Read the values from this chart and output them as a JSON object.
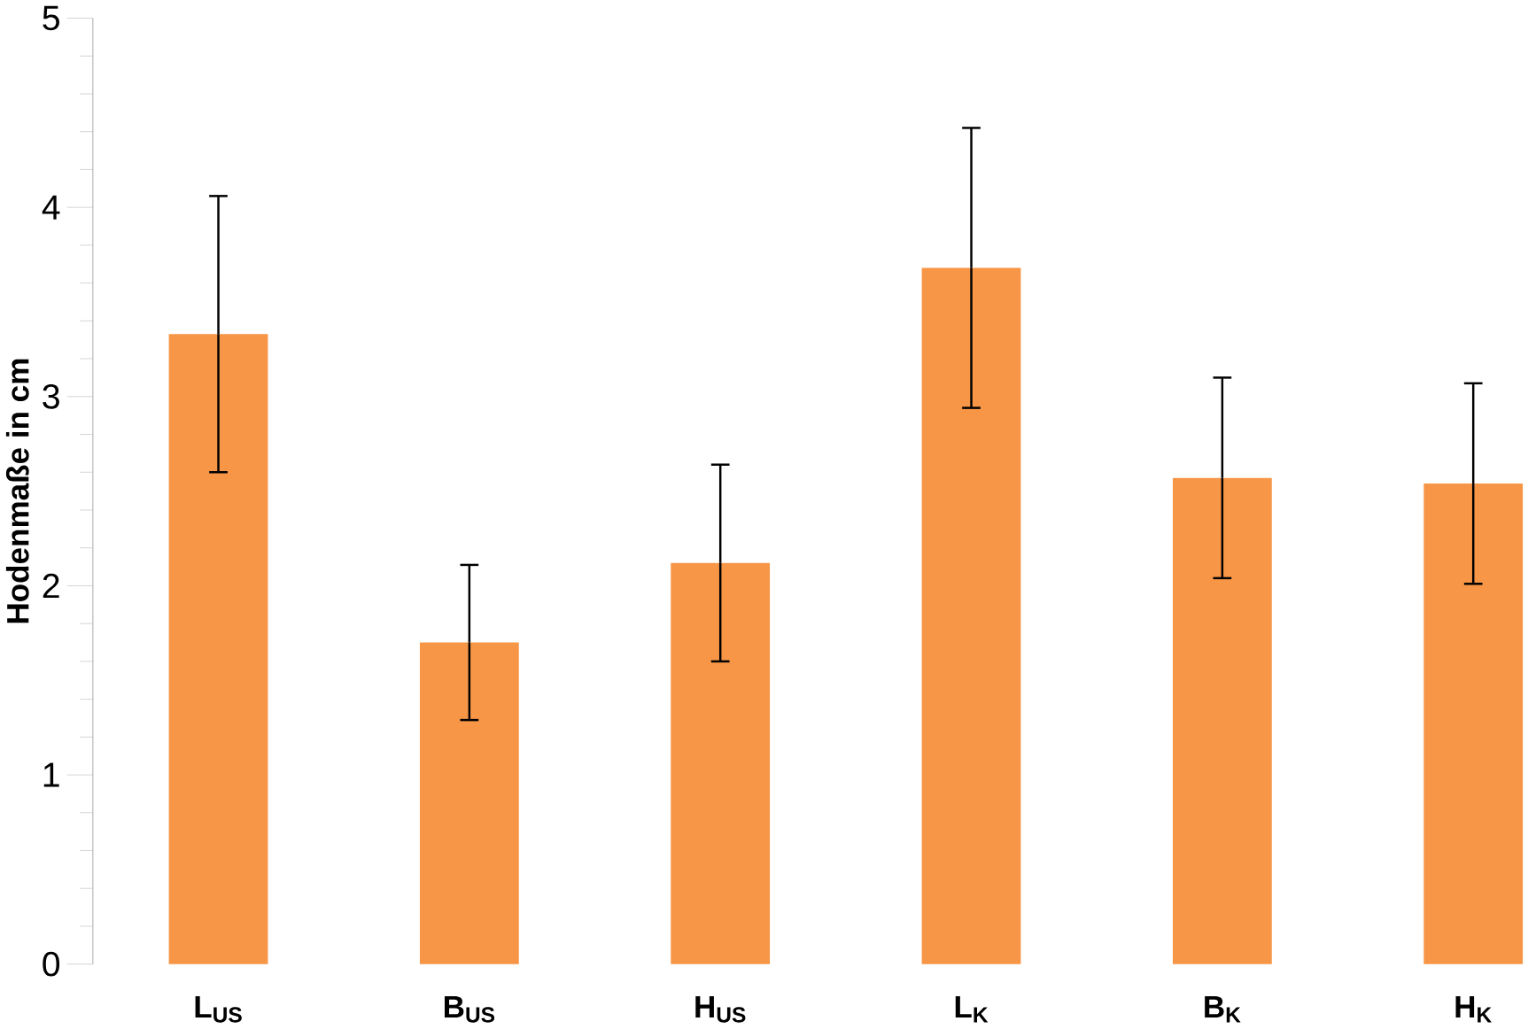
{
  "chart_data": {
    "type": "bar",
    "ylabel": "Hodenmaße in cm",
    "categories": [
      "L$_{US}$",
      "B$_{US}$",
      "H$_{US}$",
      "L$_{K}$",
      "B$_{K}$",
      "H$_{K}$"
    ],
    "values": [
      3.33,
      1.7,
      2.12,
      3.68,
      2.57,
      2.54
    ],
    "errors": [
      0.73,
      0.41,
      0.52,
      0.74,
      0.53,
      0.53
    ],
    "color": "#f79646",
    "ylim": [
      0,
      5
    ],
    "yticks": [
      0,
      1,
      2,
      3,
      4,
      5
    ]
  }
}
